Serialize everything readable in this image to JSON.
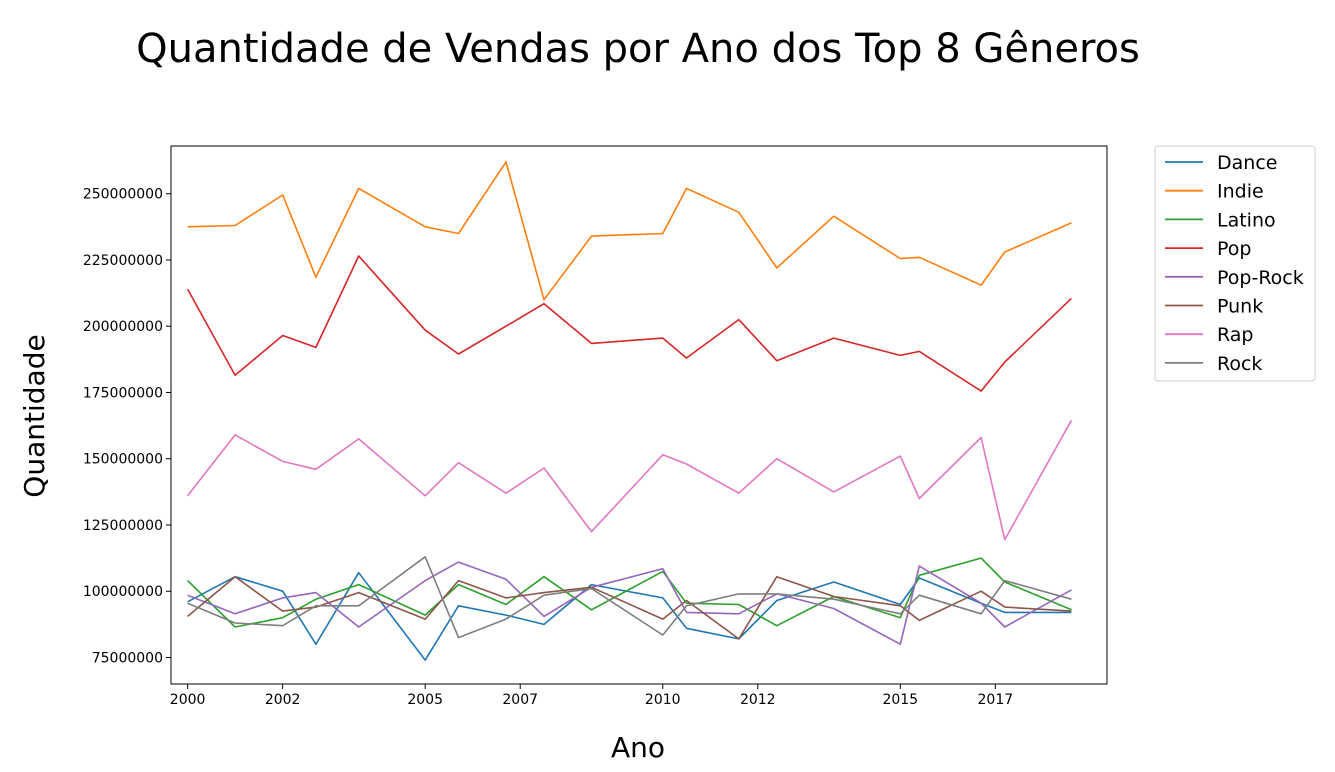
{
  "chart_data": {
    "type": "line",
    "title": "Quantidade de Vendas por Ano dos Top 8 Gêneros",
    "xlabel": "Ano",
    "ylabel": "Quantidade",
    "x": [
      2000.0,
      2001.0,
      2002.0,
      2002.7,
      2003.6,
      2005.0,
      2005.7,
      2006.7,
      2007.5,
      2008.5,
      2010.0,
      2010.5,
      2011.6,
      2012.4,
      2013.6,
      2015.0,
      2015.4,
      2016.7,
      2017.2,
      2018.6
    ],
    "xlim": [
      1999.65,
      2019.35
    ],
    "ylim": [
      65000000,
      268000000
    ],
    "xticks": [
      "2000",
      "2002",
      "2005",
      "2007",
      "2010",
      "2012",
      "2015",
      "2017"
    ],
    "xtick_positions": [
      2000,
      2002,
      2005,
      2007,
      2010,
      2012,
      2015,
      2017
    ],
    "yticks": [
      "75000000",
      "100000000",
      "125000000",
      "150000000",
      "175000000",
      "200000000",
      "225000000",
      "250000000"
    ],
    "ytick_values": [
      75000000,
      100000000,
      125000000,
      150000000,
      175000000,
      200000000,
      225000000,
      250000000
    ],
    "grid": false,
    "legend_position": "outside-right",
    "series": [
      {
        "name": "Dance",
        "color": "#1f77b4",
        "values": [
          96000000,
          105500000,
          100000000,
          80000000,
          107000000,
          74000000,
          94500000,
          91000000,
          87500000,
          102500000,
          97500000,
          86000000,
          82000000,
          96500000,
          103500000,
          95000000,
          105000000,
          95500000,
          92000000,
          92000000
        ]
      },
      {
        "name": "Indie",
        "color": "#ff7f0e",
        "values": [
          237500000,
          238000000,
          249500000,
          218500000,
          252000000,
          237500000,
          235000000,
          262000000,
          210000000,
          234000000,
          235000000,
          252000000,
          243000000,
          222000000,
          241500000,
          225500000,
          226000000,
          215500000,
          228000000,
          239000000
        ]
      },
      {
        "name": "Latino",
        "color": "#2ca02c",
        "values": [
          104000000,
          86500000,
          90000000,
          97000000,
          102500000,
          91000000,
          102500000,
          95000000,
          105500000,
          93000000,
          107500000,
          95500000,
          95000000,
          87000000,
          98000000,
          90000000,
          106000000,
          112500000,
          103500000,
          93000000
        ]
      },
      {
        "name": "Pop",
        "color": "#d62728",
        "values": [
          214000000,
          181500000,
          196500000,
          192000000,
          226500000,
          198500000,
          189500000,
          200000000,
          208500000,
          193500000,
          195500000,
          188000000,
          202500000,
          187000000,
          195500000,
          189000000,
          190500000,
          175500000,
          186500000,
          210500000
        ]
      },
      {
        "name": "Pop-Rock",
        "color": "#9467bd",
        "values": [
          98500000,
          91500000,
          97500000,
          99500000,
          86500000,
          104000000,
          111000000,
          104500000,
          90500000,
          101500000,
          108500000,
          92000000,
          91500000,
          99000000,
          93500000,
          80000000,
          109500000,
          95500000,
          86500000,
          100500000
        ]
      },
      {
        "name": "Punk",
        "color": "#8c564b",
        "values": [
          90500000,
          105500000,
          92500000,
          94000000,
          99500000,
          89500000,
          104000000,
          97500000,
          99500000,
          101500000,
          89500000,
          96500000,
          82000000,
          105500000,
          98000000,
          94500000,
          89000000,
          100000000,
          94000000,
          92500000
        ]
      },
      {
        "name": "Rap",
        "color": "#e377c2",
        "values": [
          136000000,
          159000000,
          149000000,
          146000000,
          157500000,
          136000000,
          148500000,
          137000000,
          146500000,
          122500000,
          151500000,
          148000000,
          137000000,
          150000000,
          137500000,
          151000000,
          135000000,
          158000000,
          119500000,
          164500000
        ]
      },
      {
        "name": "Rock",
        "color": "#7f7f7f",
        "values": [
          95500000,
          88000000,
          87000000,
          94500000,
          94500000,
          113000000,
          82500000,
          89500000,
          98500000,
          101000000,
          83500000,
          94500000,
          99000000,
          99000000,
          97000000,
          91500000,
          98500000,
          91500000,
          104000000,
          97000000
        ]
      }
    ]
  }
}
